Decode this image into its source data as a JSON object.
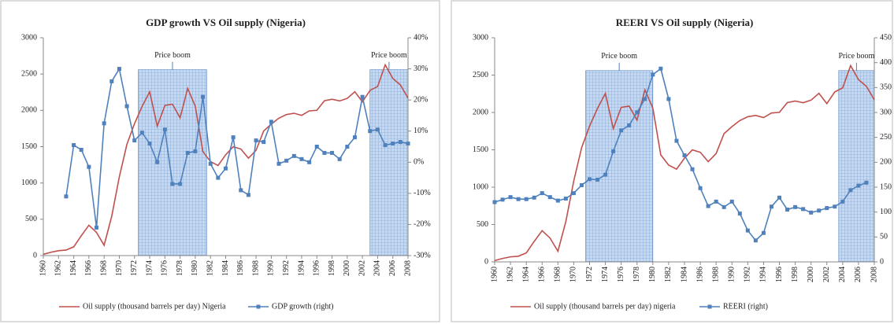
{
  "chart_data": [
    {
      "type": "line",
      "title": "GDP growth VS Oil supply (Nigeria)",
      "x": [
        1960,
        1961,
        1962,
        1963,
        1964,
        1965,
        1966,
        1967,
        1968,
        1969,
        1970,
        1971,
        1972,
        1973,
        1974,
        1975,
        1976,
        1977,
        1978,
        1979,
        1980,
        1981,
        1982,
        1983,
        1984,
        1985,
        1986,
        1987,
        1988,
        1989,
        1990,
        1991,
        1992,
        1993,
        1994,
        1995,
        1996,
        1997,
        1998,
        1999,
        2000,
        2001,
        2002,
        2003,
        2004,
        2005,
        2006,
        2007,
        2008
      ],
      "xlim": [
        1960,
        2008
      ],
      "xticks": [
        1960,
        1962,
        1964,
        1966,
        1968,
        1970,
        1972,
        1974,
        1976,
        1978,
        1980,
        1982,
        1984,
        1986,
        1988,
        1990,
        1992,
        1994,
        1996,
        1998,
        2000,
        2002,
        2004,
        2006,
        2008
      ],
      "ylim": [
        0,
        3000
      ],
      "yticks": [
        0,
        500,
        1000,
        1500,
        2000,
        2500,
        3000
      ],
      "y2lim": [
        -30,
        40
      ],
      "y2ticks": [
        {
          "value": -30,
          "label": "-30%"
        },
        {
          "value": -20,
          "label": "-20%"
        },
        {
          "value": -10,
          "label": "-10%"
        },
        {
          "value": 0,
          "label": "0%"
        },
        {
          "value": 10,
          "label": "10%"
        },
        {
          "value": 20,
          "label": "20%"
        },
        {
          "value": 30,
          "label": "30%"
        },
        {
          "value": 40,
          "label": "40%"
        }
      ],
      "series": [
        {
          "name": "Oil supply (thousand barrels per day) Nigeria",
          "color": "#c0504d",
          "marker": "none",
          "values": [
            17,
            46,
            67,
            76,
            120,
            274,
            418,
            319,
            142,
            540,
            1083,
            1531,
            1816,
            2054,
            2255,
            1783,
            2067,
            2085,
            1897,
            2302,
            2058,
            1433,
            1295,
            1241,
            1388,
            1499,
            1467,
            1341,
            1450,
            1716,
            1810,
            1892,
            1943,
            1960,
            1931,
            1993,
            2001,
            2132,
            2153,
            2130,
            2165,
            2256,
            2118,
            2275,
            2329,
            2627,
            2440,
            2350,
            2170
          ]
        },
        {
          "name": "GDP growth (right)",
          "color": "#4f81bd",
          "marker": "square",
          "axis": "y2",
          "values": [
            null,
            null,
            null,
            -11,
            5.5,
            4,
            -1.5,
            -21,
            12.5,
            26,
            30,
            18,
            7,
            9.5,
            6,
            0,
            10.5,
            -7,
            -7,
            3,
            3.5,
            21,
            -0.5,
            -5,
            -2,
            8,
            -9,
            -10.5,
            7,
            6.5,
            13,
            -0.5,
            0.5,
            2,
            1,
            0,
            5,
            3,
            3,
            1,
            5,
            8,
            21,
            10,
            10.5,
            5.5,
            6,
            6.5,
            6
          ]
        }
      ],
      "annotations": [
        {
          "text": "Price boom",
          "x": [
            1972.5,
            1981.5
          ]
        },
        {
          "text": "Price boom",
          "x": [
            2003,
            2008
          ]
        }
      ]
    },
    {
      "type": "line",
      "title": "REERI VS Oil supply (Nigeria)",
      "x": [
        1960,
        1961,
        1962,
        1963,
        1964,
        1965,
        1966,
        1967,
        1968,
        1969,
        1970,
        1971,
        1972,
        1973,
        1974,
        1975,
        1976,
        1977,
        1978,
        1979,
        1980,
        1981,
        1982,
        1983,
        1984,
        1985,
        1986,
        1987,
        1988,
        1989,
        1990,
        1991,
        1992,
        1993,
        1994,
        1995,
        1996,
        1997,
        1998,
        1999,
        2000,
        2001,
        2002,
        2003,
        2004,
        2005,
        2006,
        2007,
        2008
      ],
      "xlim": [
        1960,
        2008
      ],
      "xticks": [
        1960,
        1962,
        1964,
        1966,
        1968,
        1970,
        1972,
        1974,
        1976,
        1978,
        1980,
        1982,
        1984,
        1986,
        1988,
        1990,
        1992,
        1994,
        1996,
        1998,
        2000,
        2002,
        2004,
        2006,
        2008
      ],
      "ylim": [
        0,
        3000
      ],
      "yticks": [
        0,
        500,
        1000,
        1500,
        2000,
        2500,
        3000
      ],
      "y2lim": [
        0,
        450
      ],
      "y2ticks": [
        0,
        50,
        100,
        150,
        200,
        250,
        300,
        350,
        400,
        450
      ],
      "series": [
        {
          "name": "Oil supply (thousand barrels per day) nigeria",
          "color": "#c0504d",
          "marker": "none",
          "values": [
            17,
            46,
            67,
            76,
            120,
            274,
            418,
            319,
            142,
            540,
            1083,
            1531,
            1816,
            2054,
            2255,
            1783,
            2067,
            2085,
            1897,
            2302,
            2058,
            1433,
            1295,
            1241,
            1388,
            1499,
            1467,
            1341,
            1450,
            1716,
            1810,
            1892,
            1943,
            1960,
            1931,
            1993,
            2001,
            2132,
            2153,
            2130,
            2165,
            2256,
            2118,
            2275,
            2329,
            2627,
            2440,
            2350,
            2170
          ]
        },
        {
          "name": "REERI (right)",
          "color": "#4f81bd",
          "marker": "square",
          "axis": "y2",
          "values": [
            120,
            125,
            130,
            126,
            126,
            129,
            138,
            130,
            123,
            127,
            138,
            154,
            166,
            165,
            175,
            222,
            264,
            274,
            300,
            327,
            376,
            388,
            327,
            243,
            214,
            186,
            148,
            112,
            121,
            110,
            121,
            97,
            63,
            43,
            58,
            111,
            129,
            105,
            110,
            106,
            99,
            103,
            108,
            111,
            121,
            144,
            153,
            159,
            null
          ]
        }
      ],
      "annotations": [
        {
          "text": "Price boom",
          "x": [
            1971.5,
            1980
          ]
        },
        {
          "text": "Price boom",
          "x": [
            2003.5,
            2008
          ]
        }
      ]
    }
  ]
}
